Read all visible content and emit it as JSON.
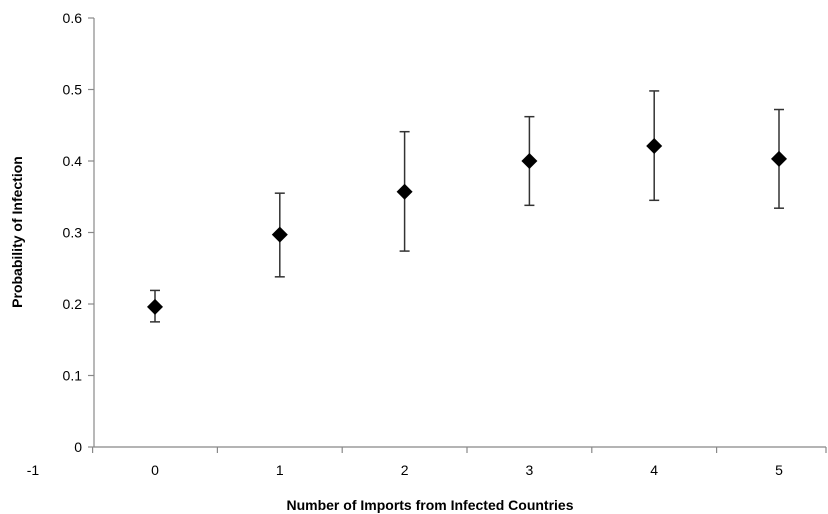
{
  "chart_data": {
    "type": "scatter",
    "title": "",
    "xlabel": "Number of Imports from Infected Countries",
    "ylabel": "Probability of Infection",
    "xlim": [
      -1,
      5.5
    ],
    "ylim": [
      0,
      0.6
    ],
    "x_ticks": [
      -1,
      0,
      1,
      2,
      3,
      4,
      5
    ],
    "y_ticks": [
      0,
      0.1,
      0.2,
      0.3,
      0.4,
      0.5,
      0.6
    ],
    "x_tick_labels": [
      "-1",
      "0",
      "1",
      "2",
      "3",
      "4",
      "5"
    ],
    "y_tick_labels": [
      "0",
      "0.1",
      "0.2",
      "0.3",
      "0.4",
      "0.5",
      "0.6"
    ],
    "grid": false,
    "legend": "none",
    "marker": "diamond",
    "series": [
      {
        "x": [
          0,
          1,
          2,
          3,
          4,
          5
        ],
        "y": [
          0.196,
          0.297,
          0.357,
          0.4,
          0.421,
          0.403
        ],
        "y_lower": [
          0.175,
          0.238,
          0.274,
          0.338,
          0.345,
          0.334
        ],
        "y_upper": [
          0.219,
          0.355,
          0.441,
          0.462,
          0.498,
          0.472
        ],
        "color": "#000000"
      }
    ]
  }
}
